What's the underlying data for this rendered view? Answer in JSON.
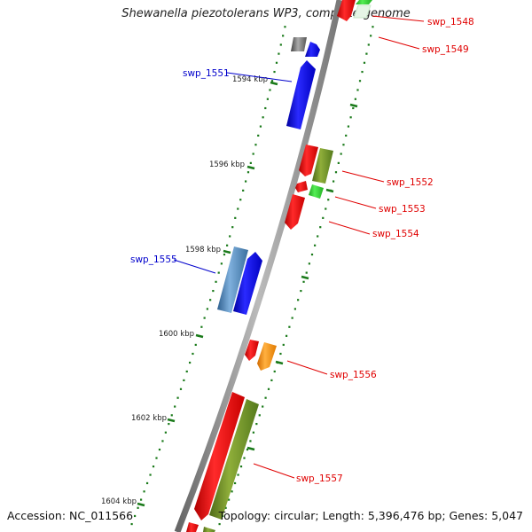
{
  "title": "Shewanella piezotolerans WP3, complete genome",
  "footer": {
    "accession": "Accession: NC_011566",
    "summary": "Topology: circular; Length: 5,396,476 bp; Genes: 5,047"
  },
  "colors": {
    "backbone": "#888888",
    "tick": "#1a7a1a",
    "label_red": "#e00000",
    "label_blue": "#0000cc"
  },
  "ticks": [
    {
      "label": "1594 kbp"
    },
    {
      "label": "1596 kbp"
    },
    {
      "label": "1598 kbp"
    },
    {
      "label": "1600 kbp"
    },
    {
      "label": "1602 kbp"
    },
    {
      "label": "1604 kbp"
    }
  ],
  "genes": [
    {
      "name": "swp_1548",
      "color": "#ff0000"
    },
    {
      "name": "swp_1549",
      "color": "#ff0000"
    },
    {
      "name": "swp_1551",
      "color": "#0000ff"
    },
    {
      "name": "swp_1552",
      "color": "#6b8e23"
    },
    {
      "name": "swp_1553",
      "color": "#33cc33"
    },
    {
      "name": "swp_1554",
      "color": "#ff0000"
    },
    {
      "name": "swp_1555",
      "color": "#4682b4"
    },
    {
      "name": "swp_1556",
      "color": "#ff8c00"
    },
    {
      "name": "swp_1557",
      "color": "#6b8e23"
    }
  ]
}
